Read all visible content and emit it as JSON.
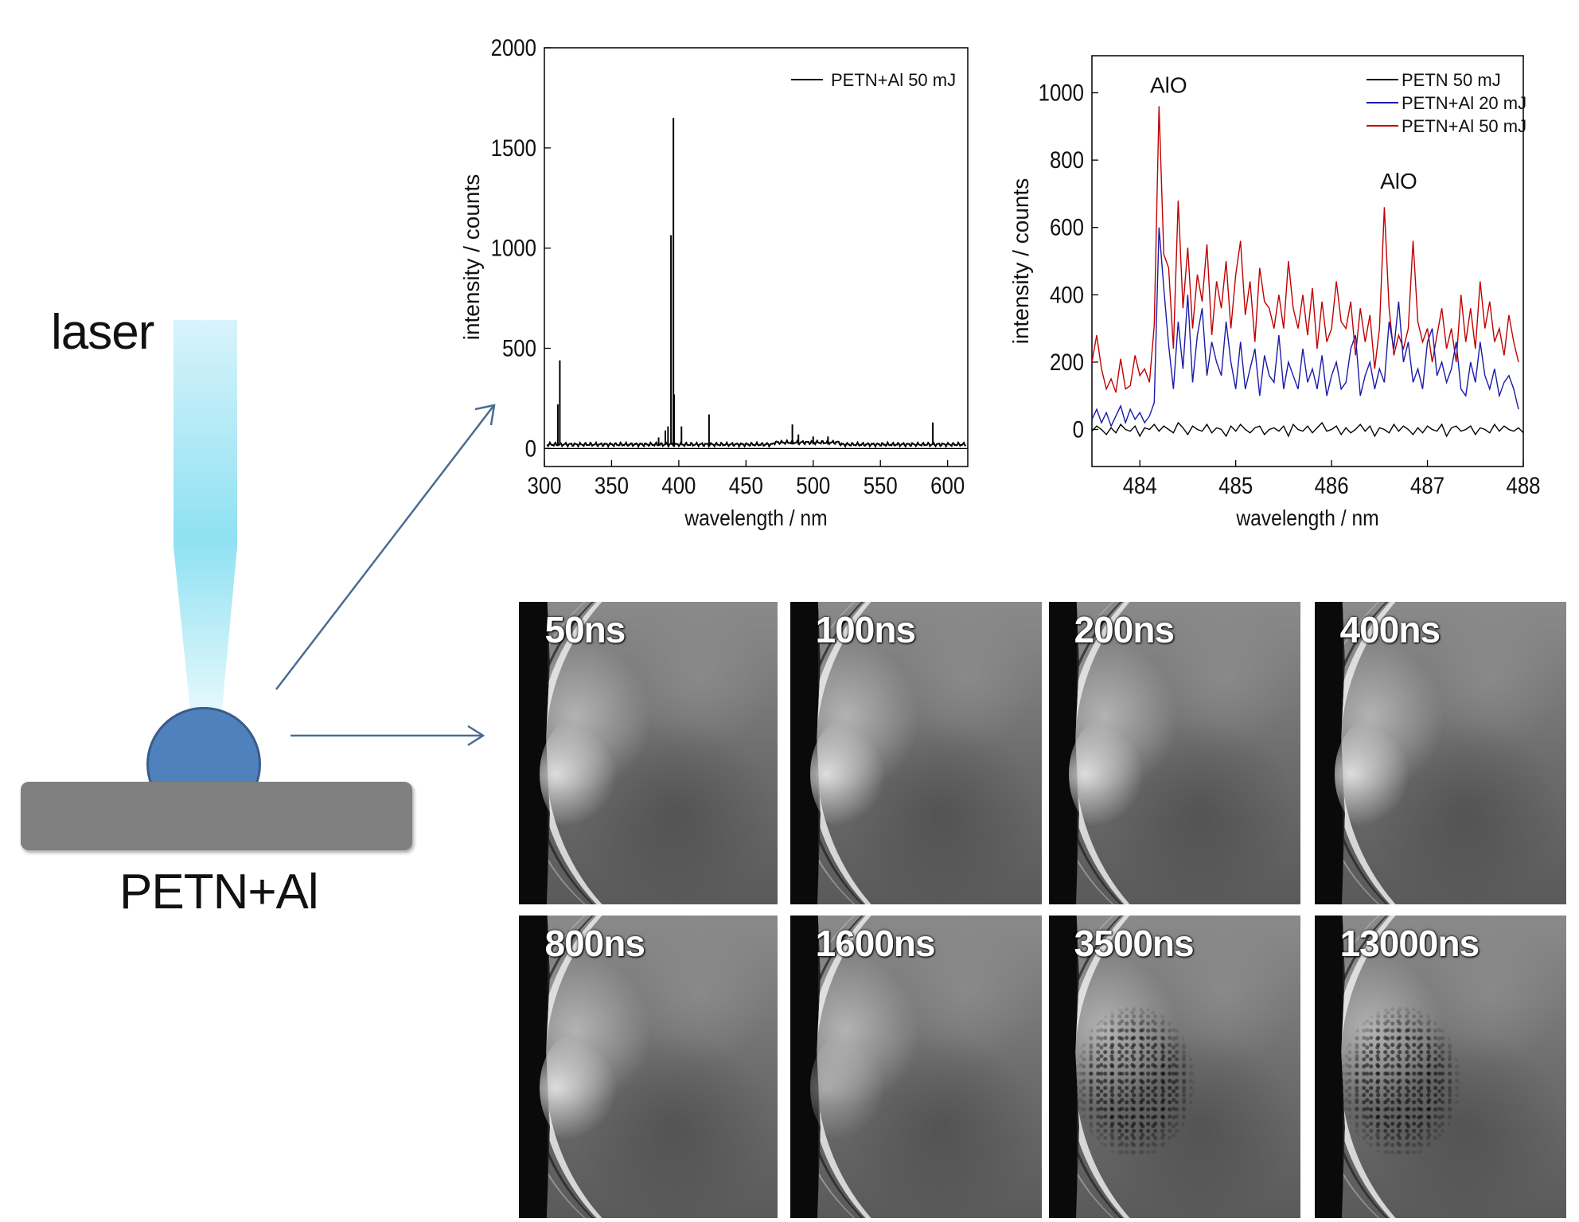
{
  "schematic": {
    "laser_label": "laser",
    "sample_label": "PETN+Al"
  },
  "colors": {
    "beam_top": "#d8f3fb",
    "beam_mid": "#8fe1f2",
    "droplet": "#4f81bd",
    "substrate": "#808080",
    "arrow": "#4a6b92",
    "petn": "#000000",
    "petn_al_20": "#1a1aa8",
    "petn_al_50": "#c00000"
  },
  "chart_data": [
    {
      "type": "line",
      "xlabel": "wavelength / nm",
      "ylabel": "intensity / counts",
      "xlim": [
        300,
        615
      ],
      "ylim": [
        -90,
        2000
      ],
      "xticks": [
        300,
        350,
        400,
        450,
        500,
        550,
        600
      ],
      "yticks": [
        0,
        500,
        1000,
        1500,
        2000
      ],
      "legend_position": "top-right",
      "baseline": 20,
      "series": [
        {
          "name": "PETN+Al 50 mJ",
          "color": "#000000",
          "peaks": [
            {
              "x": 310,
              "y": 220
            },
            {
              "x": 311.5,
              "y": 440
            },
            {
              "x": 385,
              "y": 55
            },
            {
              "x": 390,
              "y": 90
            },
            {
              "x": 392,
              "y": 110
            },
            {
              "x": 394.2,
              "y": 1065
            },
            {
              "x": 396,
              "y": 1650
            },
            {
              "x": 396.5,
              "y": 270
            },
            {
              "x": 402,
              "y": 110
            },
            {
              "x": 422.5,
              "y": 170
            },
            {
              "x": 484.5,
              "y": 120
            },
            {
              "x": 489,
              "y": 70
            },
            {
              "x": 500,
              "y": 60
            },
            {
              "x": 511,
              "y": 60
            },
            {
              "x": 589,
              "y": 130
            }
          ]
        }
      ]
    },
    {
      "type": "line",
      "xlabel": "wavelength / nm",
      "ylabel": "intensity / counts",
      "xlim": [
        483.5,
        488
      ],
      "ylim": [
        -110,
        1110
      ],
      "xticks": [
        484,
        485,
        486,
        487,
        488
      ],
      "yticks": [
        0,
        200,
        400,
        600,
        800,
        1000
      ],
      "legend_position": "top-right",
      "annotations": [
        {
          "text": "AlO",
          "x": 484.3,
          "y": 1000
        },
        {
          "text": "AlO",
          "x": 486.7,
          "y": 715
        }
      ],
      "series": [
        {
          "name": "PETN 50 mJ",
          "color": "#000000",
          "x_start": 483.5,
          "x_step": 0.05,
          "values": [
            -5,
            10,
            0,
            -15,
            5,
            -10,
            15,
            0,
            -5,
            10,
            -20,
            5,
            0,
            15,
            -5,
            10,
            0,
            -10,
            20,
            5,
            -15,
            10,
            0,
            -5,
            15,
            -10,
            5,
            0,
            -20,
            10,
            -5,
            15,
            0,
            -10,
            5,
            10,
            -15,
            0,
            5,
            -5,
            10,
            -20,
            15,
            0,
            -5,
            10,
            -10,
            5,
            20,
            -5,
            0,
            10,
            -15,
            5,
            -10,
            0,
            15,
            -5,
            10,
            -20,
            5,
            0,
            -10,
            15,
            -5,
            10,
            0,
            -15,
            5,
            -10,
            10,
            0,
            -5,
            15,
            -20,
            5,
            10,
            -5,
            0,
            10,
            -15,
            5,
            0,
            -10,
            15,
            -5,
            10,
            0,
            -5,
            5,
            -10
          ]
        },
        {
          "name": "PETN+Al 20 mJ",
          "color": "#1a1aa8",
          "x_start": 483.5,
          "x_step": 0.05,
          "values": [
            30,
            60,
            20,
            50,
            10,
            40,
            70,
            20,
            60,
            30,
            50,
            20,
            40,
            80,
            600,
            420,
            250,
            120,
            320,
            180,
            400,
            140,
            280,
            360,
            160,
            260,
            200,
            160,
            320,
            200,
            120,
            260,
            120,
            180,
            240,
            100,
            220,
            160,
            140,
            280,
            120,
            200,
            160,
            120,
            240,
            140,
            180,
            120,
            220,
            100,
            160,
            200,
            120,
            140,
            240,
            280,
            100,
            160,
            200,
            120,
            180,
            140,
            320,
            240,
            380,
            200,
            260,
            140,
            180,
            120,
            260,
            300,
            160,
            200,
            140,
            180,
            260,
            120,
            100,
            200,
            140,
            260,
            160,
            120,
            180,
            100,
            140,
            160,
            120,
            60
          ]
        },
        {
          "name": "PETN+Al 50 mJ",
          "color": "#c00000",
          "x_start": 483.5,
          "x_step": 0.05,
          "values": [
            200,
            280,
            180,
            120,
            150,
            110,
            210,
            120,
            130,
            220,
            160,
            180,
            140,
            310,
            960,
            520,
            480,
            240,
            680,
            360,
            540,
            300,
            460,
            380,
            550,
            280,
            440,
            360,
            500,
            300,
            460,
            560,
            340,
            440,
            260,
            480,
            380,
            360,
            300,
            400,
            300,
            500,
            360,
            300,
            400,
            280,
            420,
            240,
            380,
            260,
            300,
            440,
            320,
            300,
            380,
            220,
            360,
            260,
            340,
            180,
            300,
            660,
            360,
            220,
            280,
            240,
            300,
            560,
            320,
            260,
            300,
            200,
            280,
            360,
            240,
            300,
            200,
            400,
            260,
            360,
            240,
            440,
            300,
            380,
            260,
            300,
            220,
            340,
            260,
            200
          ]
        }
      ]
    }
  ],
  "frames": [
    {
      "label": "50ns",
      "plume": 1,
      "speckle": 0
    },
    {
      "label": "100ns",
      "plume": 1,
      "speckle": 0
    },
    {
      "label": "200ns",
      "plume": 1,
      "speckle": 0
    },
    {
      "label": "400ns",
      "plume": 1,
      "speckle": 0
    },
    {
      "label": "800ns",
      "plume": 1,
      "speckle": 0
    },
    {
      "label": "1600ns",
      "plume": 0.5,
      "speckle": 0
    },
    {
      "label": "3500ns",
      "plume": 0,
      "speckle": 1
    },
    {
      "label": "13000ns",
      "plume": 0,
      "speckle": 1
    }
  ]
}
